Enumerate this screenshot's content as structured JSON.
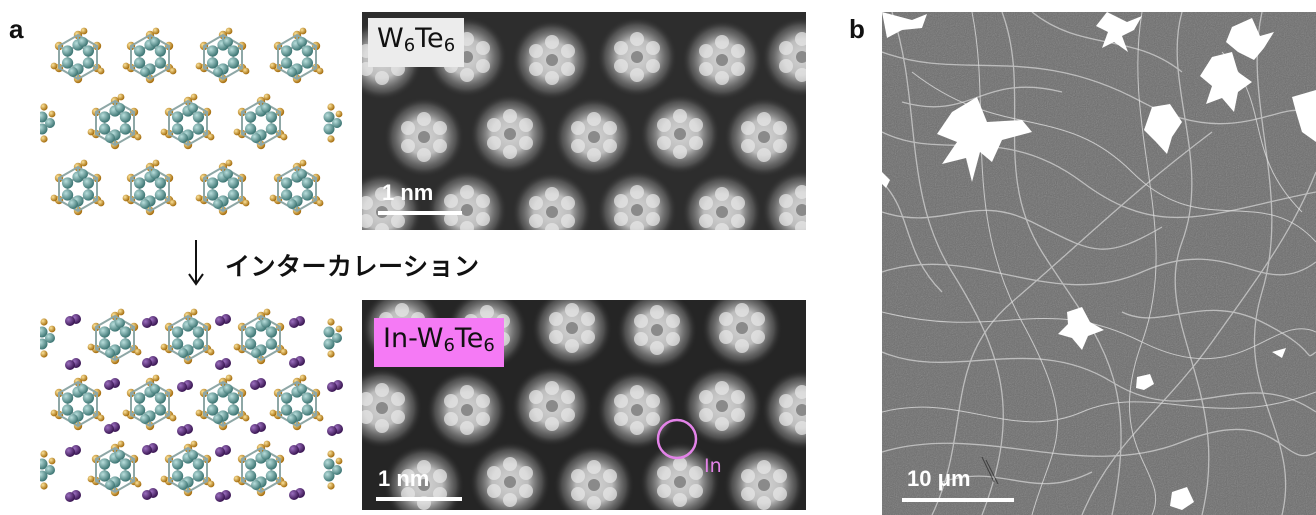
{
  "panel_a": {
    "letter": "a",
    "top_label_plain": "W6Te6",
    "top_label": {
      "el1": "W",
      "n1": "6",
      "el2": "Te",
      "n2": "6"
    },
    "bottom_label_plain": "In-W6Te6",
    "bottom_label": {
      "prefix": "In-",
      "el1": "W",
      "n1": "6",
      "el2": "Te",
      "n2": "6"
    },
    "arrow_text": "インターカレーション",
    "scale_top": "1 nm",
    "scale_bottom": "1 nm",
    "in_marker": "In"
  },
  "panel_b": {
    "letter": "b",
    "scale": "10 μm"
  },
  "colors": {
    "w_atom": "#5e9a98",
    "te_atom": "#d39a1e",
    "in_atom": "#4d2867",
    "bottom_label_bg": "#f57af5",
    "top_label_bg": "#ececec",
    "in_circle": "#e383e8"
  }
}
